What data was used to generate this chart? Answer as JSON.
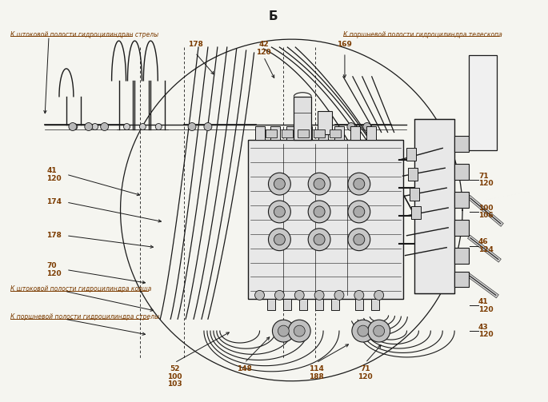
{
  "title": "Б",
  "bg_color": "#f5f5f0",
  "line_color": "#1a1a1a",
  "ref_color": "#7B3B00",
  "label_top_left": "К штоковой полости гидроцилиндран стрелы",
  "label_top_right": "К поршневой полости гидроцилиндра телескопа",
  "label_bottom_left1": "К штоковой полости гидроцилиндра ковша",
  "label_bottom_left2": "К поршневой полости гидроцилиндра стрелы",
  "figsize": [
    6.85,
    5.03
  ],
  "dpi": 100
}
